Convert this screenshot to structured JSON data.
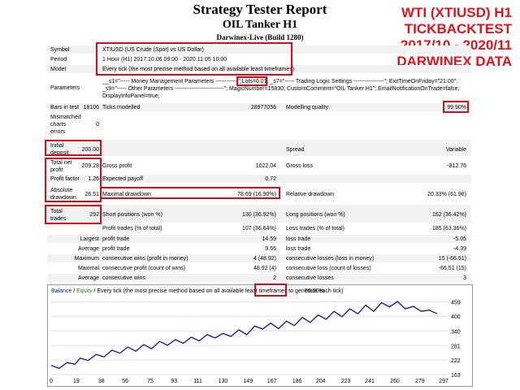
{
  "header": {
    "title": "Strategy Tester Report",
    "ea_name": "OIL Tanker H1",
    "server": "Darwinex-Live (Build 1280)"
  },
  "overlay": {
    "line1": "WTI (XTIUSD) H1",
    "line2": "TICKBACKTEST",
    "line3": "2017/10 - 2020/11",
    "line4": "DARWINEX DATA"
  },
  "info": {
    "symbol_label": "Symbol",
    "symbol_value": "XTIUSD (US Crude (Spot) vs US Dollar)",
    "period_label": "Period",
    "period_value": "1 Hour (H1) 2017.10.06 09:00 - 2020.11.05 10:00",
    "model_label": "Model",
    "model_value": "Every tick (the most precise method based on all available least timeframes)",
    "parameters_label": "Parameters",
    "param_line1a": "__s1=\"----- Money Management Parameters ------------\";",
    "param_lots": "Lots=0.01",
    "param_line1b": "; _s7=\"----- Trading Logic Settings ----------------\"; ExitTimeOnFriday=\"21:00\";",
    "param_line2": "_s9=\"----- Other Parameters --------------------------\"; MagicNumber=15830; CustomComment=\"OIL Tanker H1\"; EmailNotificationOnTrade=false;",
    "param_line3": "DisplayInfoPanel=true;"
  },
  "stats": {
    "bars_label": "Bars in test",
    "bars_value": "18106",
    "ticks_label": "Ticks modelled",
    "ticks_value": "28977056",
    "quality_label": "Modelling quality",
    "quality_value": "99.90%",
    "mismatch_label1": "Mismatched",
    "mismatch_label2": "charts",
    "mismatch_label3": "errors",
    "mismatch_value": "0",
    "initial_label1": "Initial",
    "initial_label2": "deposit",
    "initial_value": "200.00",
    "spread_label": "Spread",
    "spread_value": "Variable",
    "netprofit_label1": "Total net",
    "netprofit_label2": "profit",
    "netprofit_value": "209.28",
    "grossprofit_label": "Gross profit",
    "grossprofit_value": "1022.04",
    "grossloss_label": "Gross loss",
    "grossloss_value": "-812.76",
    "pf_label": "Profit factor",
    "pf_value": "1.26",
    "ep_label": "Expected payoff",
    "ep_value": "0.72",
    "absdd_label1": "Absolute",
    "absdd_label2": "drawdown",
    "absdd_value": "26.51",
    "maxdd_label": "Maximal drawdown",
    "maxdd_value": "78.69 (16.90%)",
    "reldd_label": "Relative drawdown",
    "reldd_value": "20.33% (61.98)",
    "trades_label1": "Total",
    "trades_label2": "trades",
    "trades_value": "292",
    "short_label": "Short positions (won %)",
    "short_value": "130 (36.92%)",
    "long_label": "Long positions (won %)",
    "long_value": "162 (36.42%)",
    "ptrades_label": "Profit trades (% of total)",
    "ptrades_value": "107 (36.64%)",
    "ltrades_label": "Loss trades (% of total)",
    "ltrades_value": "185 (63.36%)",
    "largest_label": "Largest",
    "lprofit_label": "profit trade",
    "lprofit_value": "14.59",
    "lloss_label": "loss trade",
    "lloss_value": "-5.05",
    "average_label": "Average",
    "aprofit_label": "profit trade",
    "aprofit_value": "9.55",
    "aloss_label": "loss trade",
    "aloss_value": "-4.39",
    "maximum_label": "Maximum",
    "mcw_label": "consecutive wins (profit in money)",
    "mcw_value": "4 (48.92)",
    "mcl_label": "consecutive losses (loss in money)",
    "mcl_value": "15 (-66.51)",
    "maximal_label": "Maximal",
    "mcp_label": "consecutive profit (count of wins)",
    "mcp_value": "48.92 (4)",
    "mclc_label": "consecutive loss (count of losses)",
    "mclc_value": "-66.51 (15)",
    "average2_label": "Average",
    "acw_label": "consecutive wins",
    "acw_value": "2",
    "acl_label": "consecutive losses",
    "acl_value": "3"
  },
  "chart_data": {
    "type": "line",
    "legend_balance": "Balance",
    "legend_sep": " / ",
    "legend_equity": "Equity",
    "legend_text": " / Every tick (the most precise method based on all available least timeframes to generate each tick)",
    "legend_quality": "99.90%",
    "ylim": [
      163,
      480
    ],
    "yticks": [
      "459",
      "400",
      "340",
      "281",
      "222",
      "163"
    ],
    "ytick_values": [
      459,
      400,
      340,
      281,
      222,
      163
    ],
    "xticks": [
      "0",
      "19",
      "38",
      "56",
      "75",
      "93",
      "111",
      "130",
      "149",
      "167",
      "186",
      "204",
      "223",
      "241",
      "260",
      "279",
      "297"
    ],
    "xtick_values": [
      0,
      19,
      38,
      56,
      75,
      93,
      111,
      130,
      149,
      167,
      186,
      204,
      223,
      241,
      260,
      279,
      297
    ],
    "xlim": [
      0,
      300
    ],
    "line_color": "#0a1a8c",
    "x": [
      0,
      6,
      12,
      18,
      22,
      28,
      34,
      40,
      46,
      52,
      58,
      64,
      70,
      76,
      82,
      88,
      94,
      100,
      106,
      112,
      118,
      124,
      130,
      136,
      142,
      148,
      154,
      160,
      166,
      172,
      178,
      184,
      190,
      196,
      202,
      208,
      214,
      220,
      226,
      232,
      238,
      244,
      250,
      256,
      262,
      268,
      274,
      280,
      286,
      292
    ],
    "y": [
      200,
      188,
      212,
      205,
      230,
      220,
      245,
      235,
      262,
      250,
      275,
      258,
      285,
      268,
      298,
      282,
      305,
      290,
      315,
      300,
      325,
      312,
      330,
      318,
      345,
      325,
      360,
      348,
      372,
      350,
      380,
      362,
      395,
      375,
      405,
      388,
      420,
      398,
      430,
      410,
      445,
      420,
      455,
      438,
      460,
      430,
      440,
      420,
      425,
      410
    ]
  }
}
